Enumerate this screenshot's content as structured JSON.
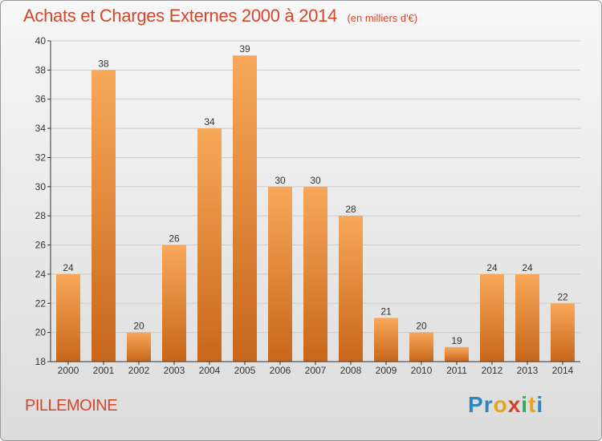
{
  "header": {
    "title": "Achats et Charges Externes 2000 à 2014",
    "unit": "(en milliers d'€)"
  },
  "footer": {
    "commune": "PILLEMOINE",
    "logo": {
      "letters": [
        "P",
        "r",
        "o",
        "x",
        "i",
        "t",
        "i"
      ],
      "colors": [
        "#2e86c1",
        "#2e86c1",
        "#e8a317",
        "#d4462a",
        "#3aa655",
        "#e8a317",
        "#2e86c1"
      ]
    }
  },
  "colors": {
    "bar_light": "#f8a85a",
    "bar_dark": "#c8661a",
    "axis": "#333333",
    "grid": "#cccccc",
    "text": "#333333",
    "title": "#d4462a"
  },
  "chart_data": {
    "type": "bar",
    "categories": [
      "2000",
      "2001",
      "2002",
      "2003",
      "2004",
      "2005",
      "2006",
      "2007",
      "2008",
      "2009",
      "2010",
      "2011",
      "2012",
      "2013",
      "2014"
    ],
    "values": [
      24,
      38,
      20,
      26,
      34,
      39,
      30,
      30,
      28,
      21,
      20,
      19,
      24,
      24,
      22
    ],
    "title": "Achats et Charges Externes 2000 à 2014",
    "xlabel": "",
    "ylabel": "",
    "ylim": [
      18,
      40
    ],
    "yticks": [
      18,
      20,
      22,
      24,
      26,
      28,
      30,
      32,
      34,
      36,
      38,
      40
    ],
    "grid": true,
    "data_labels": true
  }
}
